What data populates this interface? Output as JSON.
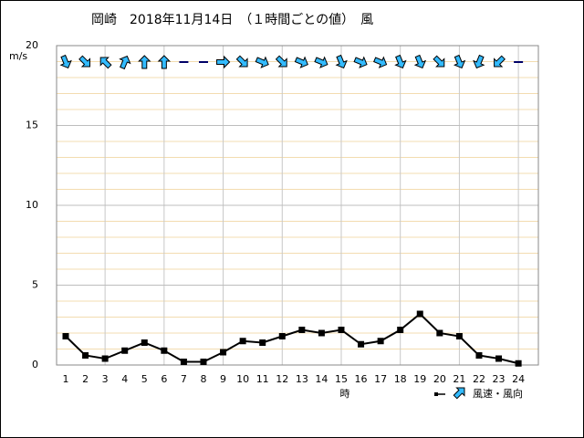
{
  "chart_data": {
    "type": "line",
    "title": "岡崎　2018年11月14日　（１時間ごとの値）　風",
    "y_unit": "m/s",
    "x_label": "時",
    "legend_label": "風速・風向",
    "categories": [
      1,
      2,
      3,
      4,
      5,
      6,
      7,
      8,
      9,
      10,
      11,
      12,
      13,
      14,
      15,
      16,
      17,
      18,
      19,
      20,
      21,
      22,
      23,
      24
    ],
    "series": [
      {
        "name": "風速",
        "color": "#000000",
        "values": [
          1.8,
          0.6,
          0.4,
          0.9,
          1.4,
          0.9,
          0.2,
          0.2,
          0.8,
          1.5,
          1.4,
          1.8,
          2.2,
          2.0,
          2.2,
          1.3,
          1.5,
          2.2,
          3.2,
          2.0,
          1.8,
          0.6,
          0.4,
          0.1
        ]
      },
      {
        "name": "風向",
        "color": "#33bbff",
        "directions": [
          157.5,
          135,
          315,
          22.5,
          0,
          0,
          null,
          null,
          90,
          135,
          112.5,
          135,
          112.5,
          112.5,
          157.5,
          112.5,
          112.5,
          157.5,
          157.5,
          135,
          157.5,
          202.5,
          225,
          null
        ]
      }
    ],
    "ylim": [
      0,
      20
    ],
    "yticks": [
      0,
      5,
      10,
      15,
      20
    ],
    "grid": true
  }
}
